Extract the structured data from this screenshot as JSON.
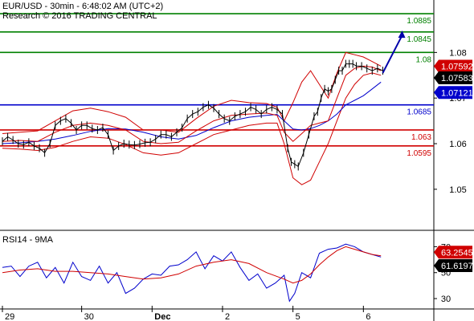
{
  "header": {
    "line1": "EUR/USD - 30min - 6:48:02 AM (UTC+2)",
    "line2": "Research © 2016 TRADING CENTRAL"
  },
  "colors": {
    "price": "#000000",
    "bollinger": "#d00000",
    "ma_fast": "#d00000",
    "ma_slow": "#0000cc",
    "resistance": "#008000",
    "pivot": "#0000cc",
    "support": "#d00000",
    "forecast_arrow": "#0000aa",
    "rsi_line": "#0000cc",
    "rsi_ma": "#d00000",
    "current_price_bg": "#000000",
    "bb_upper_bg": "#d00000",
    "pivot_bg": "#0000cc",
    "rsi_bg": "#d00000",
    "rsi_value_bg": "#000000"
  },
  "chart_data": [
    {
      "type": "line",
      "panel": "price",
      "title": "",
      "ylim": [
        1.041,
        1.0915
      ],
      "yticks": [
        "1.08",
        "1.07",
        "1.06",
        "1.05"
      ],
      "ytick_values": [
        1.08,
        1.07,
        1.06,
        1.05
      ],
      "xticks": [
        "29",
        "30",
        "Dec",
        "2",
        "5",
        "6"
      ],
      "xtick_values": [
        0,
        4.5,
        8.5,
        12.5,
        16.5,
        20.5
      ],
      "grid": false,
      "levels": [
        {
          "name": "resistance-3",
          "value": 1.0885,
          "label": "1.0885",
          "color": "#008000"
        },
        {
          "name": "resistance-2",
          "value": 1.0845,
          "label": "1.0845",
          "color": "#008000"
        },
        {
          "name": "resistance-1",
          "value": 1.08,
          "label": "1.08",
          "color": "#008000"
        },
        {
          "name": "pivot",
          "value": 1.0685,
          "label": "1.0685",
          "color": "#0000cc"
        },
        {
          "name": "support-1",
          "value": 1.063,
          "label": "1.063",
          "color": "#d00000"
        },
        {
          "name": "support-2",
          "value": 1.0595,
          "label": "1.0595",
          "color": "#d00000"
        }
      ],
      "value_tags": [
        {
          "name": "bb-upper-tag",
          "value": 1.07592,
          "label": "1.07592"
        },
        {
          "name": "current-price-tag",
          "value": 1.07583,
          "label": "1.07583"
        },
        {
          "name": "bb-lower-tag",
          "value": 1.07121,
          "label": "1.07121"
        }
      ],
      "series": [
        {
          "key": "price",
          "x": [
            0,
            0.3,
            0.6,
            0.9,
            1.2,
            1.5,
            1.8,
            2.1,
            2.4,
            2.7,
            3.0,
            3.3,
            3.6,
            3.9,
            4.2,
            4.5,
            4.8,
            5.1,
            5.4,
            5.7,
            6.0,
            6.3,
            6.6,
            6.9,
            7.2,
            7.5,
            7.8,
            8.1,
            8.4,
            8.7,
            9.0,
            9.3,
            9.6,
            9.9,
            10.2,
            10.5,
            10.8,
            11.1,
            11.4,
            11.7,
            12.0,
            12.3,
            12.6,
            12.9,
            13.2,
            13.5,
            13.8,
            14.1,
            14.4,
            14.7,
            15.0,
            15.3,
            15.6,
            15.9,
            16.2,
            16.4,
            16.6,
            16.8,
            17.1,
            17.4,
            17.7,
            17.9,
            18.1,
            18.3,
            18.5,
            18.7,
            18.9,
            19.1,
            19.3,
            19.5,
            19.7,
            19.9,
            20.1,
            20.4,
            20.7,
            21.0,
            21.3,
            21.6
          ],
          "y": [
            1.0605,
            1.0615,
            1.0608,
            1.06,
            1.0598,
            1.0603,
            1.0595,
            1.059,
            1.058,
            1.06,
            1.064,
            1.065,
            1.0655,
            1.0645,
            1.063,
            1.064,
            1.064,
            1.0633,
            1.063,
            1.0635,
            1.062,
            1.0585,
            1.0595,
            1.06,
            1.0598,
            1.0597,
            1.0599,
            1.0602,
            1.0603,
            1.061,
            1.062,
            1.062,
            1.0615,
            1.0625,
            1.0635,
            1.0655,
            1.0665,
            1.067,
            1.068,
            1.0685,
            1.0678,
            1.0665,
            1.0655,
            1.065,
            1.066,
            1.0665,
            1.067,
            1.068,
            1.0675,
            1.0665,
            1.0675,
            1.068,
            1.0675,
            1.0665,
            1.059,
            1.056,
            1.0555,
            1.055,
            1.058,
            1.062,
            1.066,
            1.067,
            1.07,
            1.072,
            1.0715,
            1.072,
            1.074,
            1.076,
            1.076,
            1.0775,
            1.0775,
            1.0775,
            1.077,
            1.077,
            1.0765,
            1.076,
            1.0765,
            1.076
          ]
        },
        {
          "key": "bb_upper",
          "x": [
            0,
            1,
            2,
            3,
            4,
            5,
            6,
            7,
            8,
            9,
            10,
            11,
            12,
            13,
            14,
            15,
            15.6,
            16,
            16.5,
            17,
            17.5,
            18,
            18.5,
            19,
            19.5,
            20,
            20.5,
            21,
            21.5
          ],
          "y": [
            1.0622,
            1.0625,
            1.0628,
            1.065,
            1.0672,
            1.0678,
            1.067,
            1.0658,
            1.063,
            1.063,
            1.0625,
            1.0655,
            1.0682,
            1.0695,
            1.069,
            1.0688,
            1.068,
            1.065,
            1.069,
            1.0735,
            1.076,
            1.073,
            1.07,
            1.0755,
            1.08,
            1.0795,
            1.079,
            1.078,
            1.077
          ]
        },
        {
          "key": "bb_lower",
          "x": [
            0,
            1,
            2,
            3,
            4,
            5,
            6,
            7,
            8,
            9,
            10,
            11,
            12,
            13,
            14,
            15,
            15.6,
            16,
            16.5,
            17,
            17.5,
            18,
            18.5,
            19,
            19.5,
            20,
            20.5,
            21,
            21.5
          ],
          "y": [
            1.059,
            1.0588,
            1.0585,
            1.0592,
            1.0605,
            1.0615,
            1.0612,
            1.0598,
            1.058,
            1.0575,
            1.058,
            1.06,
            1.062,
            1.063,
            1.064,
            1.0645,
            1.0645,
            1.06,
            1.0525,
            1.051,
            1.052,
            1.056,
            1.06,
            1.065,
            1.07,
            1.073,
            1.075,
            1.0755,
            1.075
          ]
        },
        {
          "key": "ma_fast",
          "x": [
            0,
            1,
            2,
            3,
            4,
            5,
            6,
            7,
            8,
            9,
            10,
            11,
            12,
            13,
            14,
            15,
            15.6,
            16,
            16.5,
            17,
            17.5,
            18,
            18.5,
            19,
            19.5,
            20,
            20.5,
            21,
            21.5
          ],
          "y": [
            1.0605,
            1.0607,
            1.0605,
            1.0625,
            1.064,
            1.0645,
            1.064,
            1.063,
            1.0605,
            1.06,
            1.0603,
            1.0628,
            1.065,
            1.0662,
            1.0665,
            1.0667,
            1.0662,
            1.0625,
            1.0605,
            1.0622,
            1.064,
            1.0645,
            1.065,
            1.07,
            1.075,
            1.0765,
            1.077,
            1.0768,
            1.076
          ]
        },
        {
          "key": "ma_slow",
          "x": [
            0,
            1,
            2,
            3,
            4,
            5,
            6,
            7,
            8,
            9,
            10,
            11,
            12,
            13,
            14,
            15,
            15.6,
            16,
            16.5,
            17,
            17.5,
            18,
            18.5,
            19,
            19.5,
            20,
            20.5,
            21,
            21.5
          ],
          "y": [
            1.06,
            1.0602,
            1.0605,
            1.061,
            1.0618,
            1.0627,
            1.0633,
            1.0632,
            1.0625,
            1.0615,
            1.061,
            1.0618,
            1.0635,
            1.065,
            1.0658,
            1.0662,
            1.0664,
            1.065,
            1.0632,
            1.063,
            1.0633,
            1.064,
            1.065,
            1.0665,
            1.0685,
            1.0695,
            1.0705,
            1.072,
            1.0735
          ]
        }
      ],
      "forecast_arrow": {
        "from_x": 21.6,
        "from_y": 1.0755,
        "to_x": 22.7,
        "to_y": 1.0848
      }
    },
    {
      "type": "line",
      "panel": "rsi",
      "title": "RSI14 - 9MA",
      "ylim": [
        22,
        82
      ],
      "yticks": [
        "70",
        "50",
        "30"
      ],
      "ytick_values": [
        70,
        50,
        30
      ],
      "grid": false,
      "value_tags": [
        {
          "name": "rsi-ma-tag",
          "value": 63.2545,
          "label": "63.2545"
        },
        {
          "name": "rsi-value-tag",
          "value": 61.6197,
          "label": "61.6197"
        }
      ],
      "series": [
        {
          "key": "rsi",
          "x": [
            0,
            0.5,
            1,
            1.5,
            2,
            2.5,
            3,
            3.5,
            4,
            4.5,
            5,
            5.5,
            6,
            6.5,
            7,
            7.5,
            8,
            8.5,
            9,
            9.5,
            10,
            10.5,
            11,
            11.5,
            12,
            12.5,
            13,
            13.5,
            14,
            14.5,
            15,
            15.5,
            16,
            16.3,
            16.6,
            17,
            17.5,
            18,
            18.5,
            19,
            19.5,
            20,
            20.5,
            21,
            21.5
          ],
          "y": [
            54,
            55,
            47,
            55,
            58,
            46,
            54,
            42,
            58,
            47,
            44,
            55,
            42,
            50,
            34,
            38,
            45,
            49,
            48,
            55,
            56,
            60,
            66,
            53,
            63,
            59,
            66,
            54,
            44,
            49,
            38,
            42,
            48,
            28,
            34,
            50,
            46,
            65,
            68,
            69,
            72,
            70,
            66,
            64,
            62
          ]
        },
        {
          "key": "rsi_ma",
          "x": [
            0,
            1,
            2,
            3,
            4,
            5,
            6,
            7,
            8,
            9,
            10,
            11,
            12,
            13,
            14,
            15,
            16,
            16.5,
            17,
            17.5,
            18,
            18.5,
            19,
            19.5,
            20,
            20.5,
            21,
            21.5
          ],
          "y": [
            50,
            52,
            53,
            51,
            51,
            50,
            49,
            47,
            45,
            46,
            49,
            55,
            58,
            60,
            57,
            50,
            45,
            42,
            44,
            49,
            56,
            62,
            67,
            70,
            68,
            66,
            64,
            63
          ]
        }
      ]
    }
  ]
}
